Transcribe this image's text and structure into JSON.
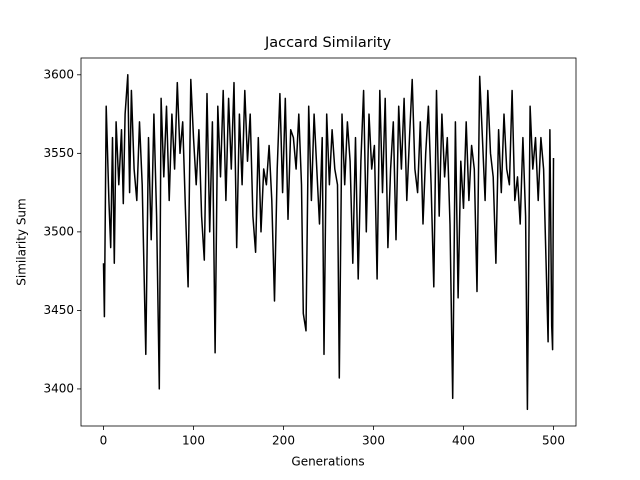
{
  "chart_data": {
    "type": "line",
    "title": "Jaccard Similarity",
    "x_label": "Generations",
    "y_label": "Similarity Sum",
    "xlim": [
      -25,
      525
    ],
    "ylim": [
      3376.4,
      3610.7
    ],
    "xticks": [
      0,
      100,
      200,
      300,
      400,
      500
    ],
    "yticks": [
      3400,
      3450,
      3500,
      3550,
      3600
    ],
    "grid": false,
    "x": [
      0,
      1,
      3,
      6,
      8,
      10,
      12,
      14,
      17,
      20,
      22,
      24,
      27,
      29,
      31,
      34,
      37,
      40,
      43,
      47,
      50,
      53,
      56,
      59,
      62,
      64,
      67,
      70,
      73,
      76,
      79,
      82,
      85,
      88,
      91,
      94,
      97,
      100,
      103,
      106,
      109,
      112,
      115,
      118,
      121,
      124,
      127,
      130,
      133,
      136,
      139,
      142,
      145,
      148,
      151,
      154,
      157,
      160,
      163,
      166,
      169,
      172,
      175,
      178,
      181,
      184,
      187,
      190,
      193,
      196,
      199,
      202,
      205,
      208,
      211,
      214,
      217,
      220,
      222,
      225,
      228,
      231,
      234,
      237,
      240,
      243,
      245,
      248,
      251,
      254,
      257,
      260,
      262,
      265,
      268,
      271,
      274,
      277,
      280,
      283,
      286,
      289,
      292,
      295,
      298,
      301,
      304,
      307,
      310,
      313,
      316,
      319,
      322,
      325,
      328,
      331,
      334,
      337,
      340,
      343,
      346,
      349,
      352,
      355,
      358,
      361,
      364,
      367,
      370,
      373,
      376,
      379,
      382,
      385,
      388,
      391,
      394,
      397,
      400,
      403,
      406,
      409,
      412,
      415,
      418,
      421,
      424,
      427,
      430,
      433,
      436,
      439,
      442,
      445,
      448,
      451,
      454,
      457,
      460,
      463,
      466,
      469,
      471,
      474,
      477,
      480,
      483,
      486,
      489,
      492,
      494,
      496,
      498,
      499,
      500
    ],
    "series": [
      {
        "name": "Similarity Sum",
        "color": "#000000",
        "values": [
          3480,
          3446,
          3580,
          3520,
          3490,
          3560,
          3480,
          3570,
          3530,
          3565,
          3518,
          3575,
          3600,
          3525,
          3590,
          3540,
          3520,
          3570,
          3530,
          3422,
          3560,
          3495,
          3575,
          3510,
          3400,
          3585,
          3535,
          3580,
          3520,
          3575,
          3540,
          3595,
          3550,
          3570,
          3515,
          3465,
          3597,
          3560,
          3530,
          3565,
          3510,
          3482,
          3588,
          3500,
          3570,
          3423,
          3580,
          3535,
          3590,
          3520,
          3585,
          3540,
          3595,
          3490,
          3575,
          3530,
          3590,
          3545,
          3575,
          3510,
          3487,
          3560,
          3500,
          3540,
          3530,
          3555,
          3520,
          3456,
          3540,
          3588,
          3525,
          3585,
          3508,
          3565,
          3560,
          3540,
          3575,
          3530,
          3448,
          3437,
          3580,
          3520,
          3575,
          3540,
          3505,
          3560,
          3422,
          3575,
          3530,
          3565,
          3540,
          3530,
          3407,
          3575,
          3530,
          3570,
          3545,
          3480,
          3560,
          3470,
          3545,
          3590,
          3500,
          3575,
          3540,
          3555,
          3470,
          3590,
          3525,
          3585,
          3490,
          3540,
          3570,
          3495,
          3580,
          3540,
          3585,
          3520,
          3560,
          3597,
          3540,
          3525,
          3570,
          3505,
          3550,
          3580,
          3530,
          3465,
          3590,
          3510,
          3575,
          3535,
          3560,
          3505,
          3394,
          3570,
          3458,
          3545,
          3515,
          3570,
          3520,
          3555,
          3540,
          3462,
          3599,
          3560,
          3520,
          3590,
          3550,
          3535,
          3480,
          3565,
          3525,
          3575,
          3540,
          3530,
          3590,
          3520,
          3535,
          3505,
          3560,
          3510,
          3387,
          3580,
          3540,
          3560,
          3520,
          3560,
          3540,
          3475,
          3430,
          3565,
          3440,
          3425,
          3547
        ]
      }
    ]
  }
}
